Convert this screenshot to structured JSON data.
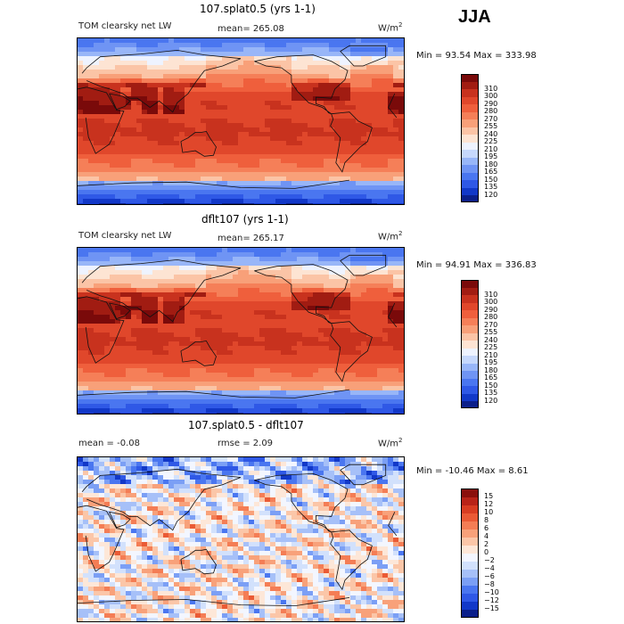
{
  "season": "JJA",
  "colors": {
    "abs": [
      "#0b1f8a",
      "#1238c8",
      "#2f58e6",
      "#4a76f0",
      "#6f94f4",
      "#98b6f8",
      "#c6d8fc",
      "#eef3ff",
      "#fde4d3",
      "#fbc4a6",
      "#f8a079",
      "#f57f58",
      "#ef5f3c",
      "#e0472b",
      "#c8321e",
      "#a11c12",
      "#7a0a0a"
    ],
    "diff": [
      "#0b1f8a",
      "#1238c8",
      "#2f58e6",
      "#4a76f0",
      "#7b9ff5",
      "#a6c0f8",
      "#d2e1fc",
      "#f3f6ff",
      "#fde7d8",
      "#fbc6a8",
      "#f8a17a",
      "#f47d55",
      "#ea5a35",
      "#d83d22",
      "#b82318",
      "#8a0f0c"
    ]
  },
  "panels": [
    {
      "title": "107.splat0.5 (yrs 1-1)",
      "left_label": "TOM clearsky net LW",
      "stat": "mean= 265.08",
      "units": "W/m",
      "units_sup": "2",
      "minmax": "Min =  93.54 Max = 333.98"
    },
    {
      "title": "dflt107 (yrs 1-1)",
      "left_label": "TOM clearsky net LW",
      "stat": "mean= 265.17",
      "units": "W/m",
      "units_sup": "2",
      "minmax": "Min =  94.91 Max = 336.83"
    },
    {
      "title": "107.splat0.5 - dflt107",
      "left_label": "mean =  -0.08",
      "stat": "rmse =   2.09",
      "units": "W/m",
      "units_sup": "2",
      "minmax": "Min = -10.46 Max =   8.61"
    }
  ],
  "chart_data": [
    {
      "type": "heatmap",
      "title": "107.splat0.5 (yrs 1-1)",
      "variable": "TOM clearsky net LW",
      "units": "W/m2",
      "mean": 265.08,
      "min": 93.54,
      "max": 333.98,
      "colorbar_levels": [
        120,
        135,
        150,
        165,
        180,
        195,
        210,
        225,
        240,
        255,
        270,
        280,
        290,
        300,
        310
      ]
    },
    {
      "type": "heatmap",
      "title": "dflt107 (yrs 1-1)",
      "variable": "TOM clearsky net LW",
      "units": "W/m2",
      "mean": 265.17,
      "min": 94.91,
      "max": 336.83,
      "colorbar_levels": [
        120,
        135,
        150,
        165,
        180,
        195,
        210,
        225,
        240,
        255,
        270,
        280,
        290,
        300,
        310
      ]
    },
    {
      "type": "heatmap",
      "title": "107.splat0.5 - dflt107",
      "units": "W/m2",
      "mean": -0.08,
      "rmse": 2.09,
      "min": -10.46,
      "max": 8.61,
      "colorbar_levels": [
        -15,
        -12,
        -10,
        -8,
        -6,
        -4,
        -2,
        0,
        2,
        4,
        6,
        8,
        10,
        12,
        15
      ]
    }
  ]
}
